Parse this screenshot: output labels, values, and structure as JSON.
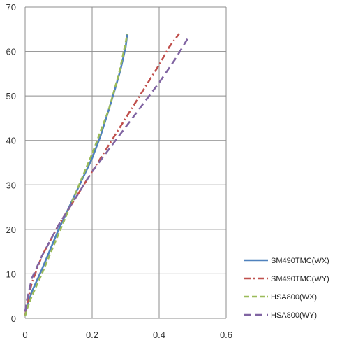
{
  "chart_data": {
    "type": "line",
    "title": "",
    "xlabel": "",
    "ylabel": "",
    "xlim": [
      0,
      0.6
    ],
    "ylim": [
      0,
      70
    ],
    "x_ticks": [
      "0",
      "0.2",
      "0.4",
      "0.6"
    ],
    "y_ticks": [
      "0",
      "10",
      "20",
      "30",
      "40",
      "50",
      "60",
      "70"
    ],
    "grid": "major gridlines on both axes",
    "legend_position": "right",
    "series": [
      {
        "name": "SM490TMC(WX)",
        "color": "#4f81bd",
        "style": "solid",
        "points": [
          [
            0.0,
            0.5
          ],
          [
            0.005,
            2.5
          ],
          [
            0.02,
            6
          ],
          [
            0.05,
            11
          ],
          [
            0.1,
            20
          ],
          [
            0.15,
            28
          ],
          [
            0.2,
            36
          ],
          [
            0.225,
            41
          ],
          [
            0.25,
            47
          ],
          [
            0.27,
            52
          ],
          [
            0.285,
            56
          ],
          [
            0.3,
            61
          ],
          [
            0.305,
            64
          ]
        ]
      },
      {
        "name": "SM490TMC(WY)",
        "color": "#c0504d",
        "style": "dashdot",
        "points": [
          [
            0.0,
            0.5
          ],
          [
            0.005,
            3
          ],
          [
            0.02,
            8
          ],
          [
            0.05,
            14
          ],
          [
            0.1,
            21
          ],
          [
            0.15,
            27
          ],
          [
            0.2,
            33
          ],
          [
            0.25,
            39
          ],
          [
            0.3,
            45
          ],
          [
            0.35,
            51
          ],
          [
            0.4,
            57
          ],
          [
            0.43,
            61
          ],
          [
            0.46,
            64
          ]
        ]
      },
      {
        "name": "HSA800(WX)",
        "color": "#9bbb59",
        "style": "dashed",
        "points": [
          [
            0.0,
            0.5
          ],
          [
            0.005,
            2
          ],
          [
            0.02,
            5
          ],
          [
            0.05,
            10
          ],
          [
            0.1,
            19
          ],
          [
            0.15,
            28
          ],
          [
            0.2,
            37
          ],
          [
            0.25,
            47
          ],
          [
            0.28,
            55
          ],
          [
            0.3,
            62
          ],
          [
            0.305,
            64
          ]
        ]
      },
      {
        "name": "HSA800(WY)",
        "color": "#8064a2",
        "style": "longdash",
        "points": [
          [
            0.0,
            1.5
          ],
          [
            0.005,
            4
          ],
          [
            0.02,
            9
          ],
          [
            0.05,
            14
          ],
          [
            0.1,
            21
          ],
          [
            0.15,
            27
          ],
          [
            0.2,
            33
          ],
          [
            0.25,
            38
          ],
          [
            0.3,
            43
          ],
          [
            0.35,
            48
          ],
          [
            0.4,
            53
          ],
          [
            0.45,
            58.5
          ],
          [
            0.49,
            63.5
          ]
        ]
      }
    ]
  }
}
